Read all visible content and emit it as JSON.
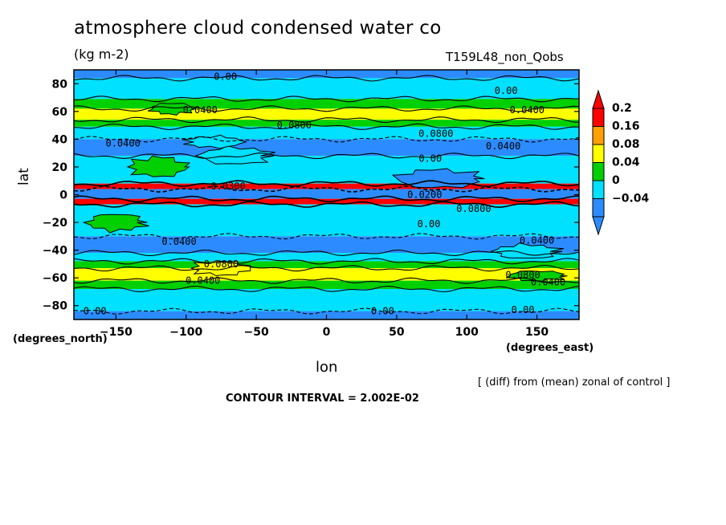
{
  "title": "atmosphere cloud condensed water co",
  "units": "(kg m-2)",
  "run_label": "T159L48_non_Qobs",
  "note": "[ (diff) from (mean) zonal of control ]",
  "contour_interval": "CONTOUR INTERVAL = 2.002E-02",
  "chart_data": {
    "type": "heatmap",
    "xlabel": "lon",
    "ylabel": "lat",
    "x_unit_label": "(degrees_east)",
    "y_unit_label": "(degrees_north)",
    "xlim": [
      -180,
      180
    ],
    "ylim": [
      -90,
      90
    ],
    "x_ticks": [
      -150,
      -100,
      -50,
      0,
      50,
      100,
      150
    ],
    "y_ticks": [
      80,
      60,
      40,
      20,
      0,
      -20,
      -40,
      -60,
      -80
    ],
    "colorbar": {
      "levels": [
        0.2,
        0.16,
        0.08,
        0.04,
        0,
        -0.04
      ],
      "colors": [
        "#2c8cff",
        "#00e0ff",
        "#00d000",
        "#ffff00",
        "#ffa000",
        "#ff0000"
      ],
      "extend": "both"
    },
    "zonal_bands": [
      {
        "lat": [
          84,
          90
        ],
        "class": 0
      },
      {
        "lat": [
          69,
          84
        ],
        "class": 1
      },
      {
        "lat": [
          62,
          69
        ],
        "class": 2
      },
      {
        "lat": [
          54,
          62
        ],
        "class": 3
      },
      {
        "lat": [
          49,
          54
        ],
        "class": 2
      },
      {
        "lat": [
          40,
          49
        ],
        "class": 1
      },
      {
        "lat": [
          28,
          40
        ],
        "class": 0
      },
      {
        "lat": [
          8,
          28
        ],
        "class": 1
      },
      {
        "lat": [
          4,
          8
        ],
        "class": 5
      },
      {
        "lat": [
          -3,
          4
        ],
        "class": 0
      },
      {
        "lat": [
          -7,
          -3
        ],
        "class": 5
      },
      {
        "lat": [
          -30,
          -7
        ],
        "class": 1
      },
      {
        "lat": [
          -42,
          -30
        ],
        "class": 0
      },
      {
        "lat": [
          -48,
          -42
        ],
        "class": 1
      },
      {
        "lat": [
          -53,
          -48
        ],
        "class": 2
      },
      {
        "lat": [
          -62,
          -53
        ],
        "class": 3
      },
      {
        "lat": [
          -68,
          -62
        ],
        "class": 2
      },
      {
        "lat": [
          -84,
          -68
        ],
        "class": 1
      },
      {
        "lat": [
          -90,
          -84
        ],
        "class": 0
      }
    ],
    "patches": [
      {
        "lon": [
          -140,
          -100
        ],
        "lat": [
          13,
          27
        ],
        "class": 2
      },
      {
        "lon": [
          -90,
          -40
        ],
        "lat": [
          22,
          34
        ],
        "class": 1
      },
      {
        "lon": [
          -125,
          -95
        ],
        "lat": [
          58,
          66
        ],
        "class": 2
      },
      {
        "lon": [
          -100,
          -60
        ],
        "lat": [
          34,
          42
        ],
        "class": 1
      },
      {
        "lon": [
          50,
          110
        ],
        "lat": [
          5,
          18
        ],
        "class": 0
      },
      {
        "lon": [
          -170,
          -130
        ],
        "lat": [
          -26,
          -14
        ],
        "class": 2
      },
      {
        "lon": [
          -95,
          -55
        ],
        "lat": [
          -58,
          -48
        ],
        "class": 3
      },
      {
        "lon": [
          120,
          165
        ],
        "lat": [
          -46,
          -36
        ],
        "class": 1
      },
      {
        "lon": [
          130,
          170
        ],
        "lat": [
          -62,
          -55
        ],
        "class": 2
      }
    ],
    "contour_labels": [
      {
        "text": "0.00",
        "lon": -72,
        "lat": 85
      },
      {
        "text": "0.00",
        "lon": 128,
        "lat": 75
      },
      {
        "text": "0.0400",
        "lon": -90,
        "lat": 61
      },
      {
        "text": "0.0400",
        "lon": 143,
        "lat": 61
      },
      {
        "text": "0.0800",
        "lon": -23,
        "lat": 50
      },
      {
        "text": "0.0800",
        "lon": 78,
        "lat": 44
      },
      {
        "text": "0.0400",
        "lon": -145,
        "lat": 37
      },
      {
        "text": "0.0400",
        "lon": 126,
        "lat": 35
      },
      {
        "text": "0.00",
        "lon": 74,
        "lat": 26
      },
      {
        "text": "0.0300",
        "lon": -70,
        "lat": 6
      },
      {
        "text": "0.0200",
        "lon": 70,
        "lat": 0
      },
      {
        "text": "0.0800",
        "lon": 105,
        "lat": -10
      },
      {
        "text": "0.00",
        "lon": 73,
        "lat": -21
      },
      {
        "text": "0.0400",
        "lon": -105,
        "lat": -34
      },
      {
        "text": "0.0400",
        "lon": 150,
        "lat": -33
      },
      {
        "text": "0.0800",
        "lon": -75,
        "lat": -50
      },
      {
        "text": "0.0800",
        "lon": 140,
        "lat": -58
      },
      {
        "text": "0.0400",
        "lon": -88,
        "lat": -62
      },
      {
        "text": "0.0400",
        "lon": 158,
        "lat": -63
      },
      {
        "text": "0.00",
        "lon": -165,
        "lat": -84
      },
      {
        "text": "0.00",
        "lon": 40,
        "lat": -84
      },
      {
        "text": "0.00",
        "lon": 140,
        "lat": -83
      }
    ]
  }
}
